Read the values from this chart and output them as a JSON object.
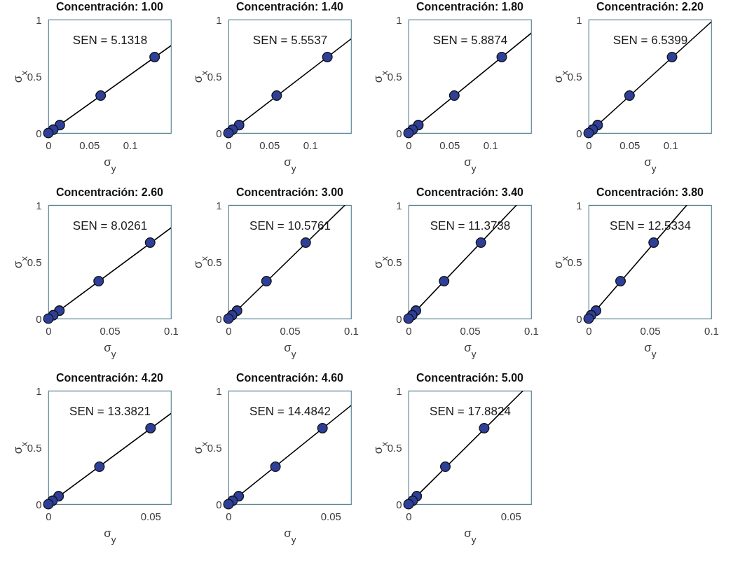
{
  "chart_data": [
    {
      "type": "scatter",
      "title": "Concentración: 1.00",
      "xlabel": "σ$_{y}$",
      "ylabel": "σ$_{x}$",
      "xlim": [
        0,
        0.15
      ],
      "xticks": [
        0,
        0.05,
        0.1
      ],
      "ylim": [
        0,
        1
      ],
      "yticks": [
        0,
        0.5,
        1
      ],
      "annotations": [
        "SEN = 5.1318"
      ],
      "series": [
        {
          "type": "scatter",
          "marker": "circle",
          "color": "#2e3f9a",
          "x": [
            0,
            0.006,
            0.014,
            0.064,
            0.13
          ],
          "values": [
            0,
            0.03,
            0.07,
            0.33,
            0.67
          ]
        },
        {
          "type": "line",
          "color": "#000000",
          "x": [
            0,
            0.15
          ],
          "values": [
            0,
            0.77
          ]
        }
      ]
    },
    {
      "type": "scatter",
      "title": "Concentración: 1.40",
      "xlabel": "σ$_{y}$",
      "ylabel": "σ$_{x}$",
      "xlim": [
        0,
        0.15
      ],
      "xticks": [
        0,
        0.05,
        0.1
      ],
      "ylim": [
        0,
        1
      ],
      "yticks": [
        0,
        0.5,
        1
      ],
      "annotations": [
        "SEN = 5.5537"
      ],
      "series": [
        {
          "type": "scatter",
          "marker": "circle",
          "color": "#2e3f9a",
          "x": [
            0,
            0.005,
            0.013,
            0.059,
            0.121
          ],
          "values": [
            0,
            0.03,
            0.07,
            0.33,
            0.67
          ]
        },
        {
          "type": "line",
          "color": "#000000",
          "x": [
            0,
            0.15
          ],
          "values": [
            0,
            0.83
          ]
        }
      ]
    },
    {
      "type": "scatter",
      "title": "Concentración: 1.80",
      "xlabel": "σ$_{y}$",
      "ylabel": "σ$_{x}$",
      "xlim": [
        0,
        0.15
      ],
      "xticks": [
        0,
        0.05,
        0.1
      ],
      "ylim": [
        0,
        1
      ],
      "yticks": [
        0,
        0.5,
        1
      ],
      "annotations": [
        "SEN = 5.8874"
      ],
      "series": [
        {
          "type": "scatter",
          "marker": "circle",
          "color": "#2e3f9a",
          "x": [
            0,
            0.005,
            0.012,
            0.056,
            0.114
          ],
          "values": [
            0,
            0.03,
            0.07,
            0.33,
            0.67
          ]
        },
        {
          "type": "line",
          "color": "#000000",
          "x": [
            0,
            0.15
          ],
          "values": [
            0,
            0.88
          ]
        }
      ]
    },
    {
      "type": "scatter",
      "title": "Concentración: 2.20",
      "xlabel": "σ$_{y}$",
      "ylabel": "σ$_{x}$",
      "xlim": [
        0,
        0.15
      ],
      "xticks": [
        0,
        0.05,
        0.1
      ],
      "ylim": [
        0,
        1
      ],
      "yticks": [
        0,
        0.5,
        1
      ],
      "annotations": [
        "SEN = 6.5399"
      ],
      "series": [
        {
          "type": "scatter",
          "marker": "circle",
          "color": "#2e3f9a",
          "x": [
            0,
            0.005,
            0.011,
            0.05,
            0.102
          ],
          "values": [
            0,
            0.03,
            0.07,
            0.33,
            0.67
          ]
        },
        {
          "type": "line",
          "color": "#000000",
          "x": [
            0,
            0.15
          ],
          "values": [
            0,
            0.98
          ]
        }
      ]
    },
    {
      "type": "scatter",
      "title": "Concentración: 2.60",
      "xlabel": "σ$_{y}$",
      "ylabel": "σ$_{x}$",
      "xlim": [
        0,
        0.1
      ],
      "xticks": [
        0,
        0.05,
        0.1
      ],
      "ylim": [
        0,
        1
      ],
      "yticks": [
        0,
        0.5,
        1
      ],
      "annotations": [
        "SEN = 8.0261"
      ],
      "series": [
        {
          "type": "scatter",
          "marker": "circle",
          "color": "#2e3f9a",
          "x": [
            0,
            0.004,
            0.009,
            0.041,
            0.083
          ],
          "values": [
            0,
            0.03,
            0.07,
            0.33,
            0.67
          ]
        },
        {
          "type": "line",
          "color": "#000000",
          "x": [
            0,
            0.1
          ],
          "values": [
            0,
            0.8
          ]
        }
      ]
    },
    {
      "type": "scatter",
      "title": "Concentración: 3.00",
      "xlabel": "σ$_{y}$",
      "ylabel": "σ$_{x}$",
      "xlim": [
        0,
        0.1
      ],
      "xticks": [
        0,
        0.05,
        0.1
      ],
      "ylim": [
        0,
        1
      ],
      "yticks": [
        0,
        0.5,
        1
      ],
      "annotations": [
        "SEN = 10.5761"
      ],
      "series": [
        {
          "type": "scatter",
          "marker": "circle",
          "color": "#2e3f9a",
          "x": [
            0,
            0.003,
            0.007,
            0.031,
            0.063
          ],
          "values": [
            0,
            0.03,
            0.07,
            0.33,
            0.67
          ]
        },
        {
          "type": "line",
          "color": "#000000",
          "x": [
            0,
            0.095
          ],
          "values": [
            0,
            1
          ]
        }
      ]
    },
    {
      "type": "scatter",
      "title": "Concentración: 3.40",
      "xlabel": "σ$_{y}$",
      "ylabel": "σ$_{x}$",
      "xlim": [
        0,
        0.1
      ],
      "xticks": [
        0,
        0.05,
        0.1
      ],
      "ylim": [
        0,
        1
      ],
      "yticks": [
        0,
        0.5,
        1
      ],
      "annotations": [
        "SEN = 11.3738"
      ],
      "series": [
        {
          "type": "scatter",
          "marker": "circle",
          "color": "#2e3f9a",
          "x": [
            0,
            0.003,
            0.006,
            0.029,
            0.059
          ],
          "values": [
            0,
            0.03,
            0.07,
            0.33,
            0.67
          ]
        },
        {
          "type": "line",
          "color": "#000000",
          "x": [
            0,
            0.088
          ],
          "values": [
            0,
            1
          ]
        }
      ]
    },
    {
      "type": "scatter",
      "title": "Concentración: 3.80",
      "xlabel": "σ$_{y}$",
      "ylabel": "σ$_{x}$",
      "xlim": [
        0,
        0.1
      ],
      "xticks": [
        0,
        0.05,
        0.1
      ],
      "ylim": [
        0,
        1
      ],
      "yticks": [
        0,
        0.5,
        1
      ],
      "annotations": [
        "SEN = 12.5334"
      ],
      "series": [
        {
          "type": "scatter",
          "marker": "circle",
          "color": "#2e3f9a",
          "x": [
            0,
            0.002,
            0.006,
            0.026,
            0.053
          ],
          "values": [
            0,
            0.03,
            0.07,
            0.33,
            0.67
          ]
        },
        {
          "type": "line",
          "color": "#000000",
          "x": [
            0,
            0.08
          ],
          "values": [
            0,
            1
          ]
        }
      ]
    },
    {
      "type": "scatter",
      "title": "Concentración: 4.20",
      "xlabel": "σ$_{y}$",
      "ylabel": "σ$_{x}$",
      "xlim": [
        0,
        0.06
      ],
      "xticks": [
        0,
        0.05
      ],
      "ylim": [
        0,
        1
      ],
      "yticks": [
        0,
        0.5,
        1
      ],
      "annotations": [
        "SEN = 13.3821"
      ],
      "series": [
        {
          "type": "scatter",
          "marker": "circle",
          "color": "#2e3f9a",
          "x": [
            0,
            0.002,
            0.005,
            0.025,
            0.05
          ],
          "values": [
            0,
            0.03,
            0.07,
            0.33,
            0.67
          ]
        },
        {
          "type": "line",
          "color": "#000000",
          "x": [
            0,
            0.06
          ],
          "values": [
            0,
            0.8
          ]
        }
      ]
    },
    {
      "type": "scatter",
      "title": "Concentración: 4.60",
      "xlabel": "σ$_{y}$",
      "ylabel": "σ$_{x}$",
      "xlim": [
        0,
        0.06
      ],
      "xticks": [
        0,
        0.05
      ],
      "ylim": [
        0,
        1
      ],
      "yticks": [
        0,
        0.5,
        1
      ],
      "annotations": [
        "SEN = 14.4842"
      ],
      "series": [
        {
          "type": "scatter",
          "marker": "circle",
          "color": "#2e3f9a",
          "x": [
            0,
            0.002,
            0.005,
            0.023,
            0.046
          ],
          "values": [
            0,
            0.03,
            0.07,
            0.33,
            0.67
          ]
        },
        {
          "type": "line",
          "color": "#000000",
          "x": [
            0,
            0.06
          ],
          "values": [
            0,
            0.87
          ]
        }
      ]
    },
    {
      "type": "scatter",
      "title": "Concentración: 5.00",
      "xlabel": "σ$_{y}$",
      "ylabel": "σ$_{x}$",
      "xlim": [
        0,
        0.06
      ],
      "xticks": [
        0,
        0.05
      ],
      "ylim": [
        0,
        1
      ],
      "yticks": [
        0,
        0.5,
        1
      ],
      "annotations": [
        "SEN = 17.8824"
      ],
      "series": [
        {
          "type": "scatter",
          "marker": "circle",
          "color": "#2e3f9a",
          "x": [
            0,
            0.002,
            0.004,
            0.018,
            0.037
          ],
          "values": [
            0,
            0.03,
            0.07,
            0.33,
            0.67
          ]
        },
        {
          "type": "line",
          "color": "#000000",
          "x": [
            0,
            0.056
          ],
          "values": [
            0,
            1
          ]
        }
      ]
    }
  ]
}
